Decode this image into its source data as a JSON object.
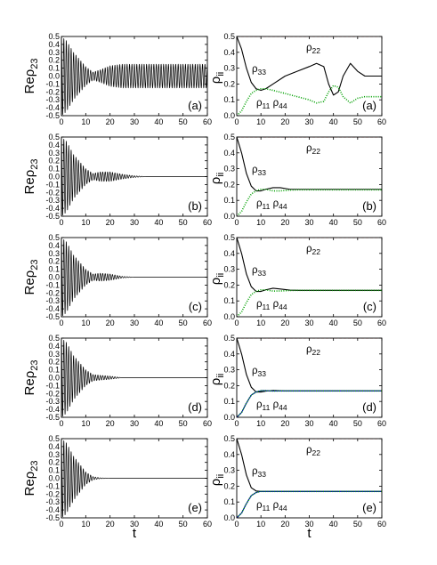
{
  "figure": {
    "x_axis_label": "t",
    "left_ylabel": {
      "main": "Re",
      "greek": "ρ",
      "sub": "23"
    },
    "right_ylabel": {
      "greek": "ρ",
      "sub": "ii"
    }
  },
  "chart_data": [
    {
      "type": "line",
      "column": "left",
      "panel_label": "(a)",
      "xlim": [
        0,
        60
      ],
      "ylim": [
        -0.5,
        0.5
      ],
      "xticks": [
        0,
        10,
        20,
        30,
        40,
        50,
        60
      ],
      "yticks": [
        -0.5,
        -0.4,
        -0.3,
        -0.2,
        -0.1,
        0.0,
        0.1,
        0.2,
        0.3,
        0.4,
        0.5
      ],
      "series": [
        {
          "color": "#000000",
          "envelope_t": [
            0,
            2,
            5,
            10,
            13,
            16,
            20,
            25,
            60
          ],
          "envelope_amp": [
            0.5,
            0.45,
            0.3,
            0.12,
            0.05,
            0.08,
            0.13,
            0.15,
            0.15
          ],
          "period": 1.0
        }
      ]
    },
    {
      "type": "line",
      "column": "left",
      "panel_label": "(b)",
      "xlim": [
        0,
        60
      ],
      "ylim": [
        -0.5,
        0.5
      ],
      "xticks": [
        0,
        10,
        20,
        30,
        40,
        50,
        60
      ],
      "yticks": [
        -0.5,
        -0.4,
        -0.3,
        -0.2,
        -0.1,
        0.0,
        0.1,
        0.2,
        0.3,
        0.4,
        0.5
      ],
      "series": [
        {
          "color": "#000000",
          "envelope_t": [
            0,
            2,
            5,
            10,
            13,
            16,
            20,
            25,
            30,
            35,
            60
          ],
          "envelope_amp": [
            0.5,
            0.45,
            0.28,
            0.1,
            0.04,
            0.06,
            0.06,
            0.03,
            0.01,
            0.0,
            0.0
          ],
          "period": 1.0
        }
      ]
    },
    {
      "type": "line",
      "column": "left",
      "panel_label": "(c)",
      "xlim": [
        0,
        60
      ],
      "ylim": [
        -0.5,
        0.5
      ],
      "xticks": [
        0,
        10,
        20,
        30,
        40,
        50,
        60
      ],
      "yticks": [
        -0.5,
        -0.4,
        -0.3,
        -0.2,
        -0.1,
        0.0,
        0.1,
        0.2,
        0.3,
        0.4,
        0.5
      ],
      "series": [
        {
          "color": "#000000",
          "envelope_t": [
            0,
            2,
            5,
            10,
            13,
            16,
            20,
            25,
            30,
            60
          ],
          "envelope_amp": [
            0.5,
            0.45,
            0.28,
            0.1,
            0.04,
            0.05,
            0.04,
            0.01,
            0.0,
            0.0
          ],
          "period": 1.0
        }
      ]
    },
    {
      "type": "line",
      "column": "left",
      "panel_label": "(d)",
      "xlim": [
        0,
        60
      ],
      "ylim": [
        -0.5,
        0.5
      ],
      "xticks": [
        0,
        10,
        20,
        30,
        40,
        50,
        60
      ],
      "yticks": [
        -0.5,
        -0.4,
        -0.3,
        -0.2,
        -0.1,
        0.0,
        0.1,
        0.2,
        0.3,
        0.4,
        0.5
      ],
      "series": [
        {
          "color": "#000000",
          "envelope_t": [
            0,
            2,
            5,
            10,
            13,
            16,
            20,
            25,
            60
          ],
          "envelope_amp": [
            0.5,
            0.45,
            0.28,
            0.1,
            0.04,
            0.03,
            0.02,
            0.0,
            0.0
          ],
          "period": 1.0
        }
      ]
    },
    {
      "type": "line",
      "column": "left",
      "panel_label": "(e)",
      "xlim": [
        0,
        60
      ],
      "ylim": [
        -0.5,
        0.5
      ],
      "xticks": [
        0,
        10,
        20,
        30,
        40,
        50,
        60
      ],
      "yticks": [
        -0.5,
        -0.4,
        -0.3,
        -0.2,
        -0.1,
        0.0,
        0.1,
        0.2,
        0.3,
        0.4,
        0.5
      ],
      "series": [
        {
          "color": "#000000",
          "envelope_t": [
            0,
            2,
            5,
            10,
            13,
            16,
            20,
            60
          ],
          "envelope_amp": [
            0.5,
            0.45,
            0.28,
            0.08,
            0.02,
            0.005,
            0.0,
            0.0
          ],
          "period": 1.0
        }
      ]
    },
    {
      "type": "line",
      "column": "right",
      "panel_label": "(a)",
      "xlim": [
        0,
        60
      ],
      "ylim": [
        0.0,
        0.5
      ],
      "xticks": [
        0,
        10,
        20,
        30,
        40,
        50,
        60
      ],
      "yticks": [
        0.0,
        0.1,
        0.2,
        0.3,
        0.4,
        0.5
      ],
      "annotations": [
        "ρ22",
        "ρ33",
        "ρ11 ρ44"
      ],
      "series": [
        {
          "color": "#ff0000",
          "style": "dash",
          "x": [
            0,
            60
          ],
          "y": [
            0.5,
            0.5
          ]
        },
        {
          "color": "#000000",
          "style": "solid",
          "x": [
            0,
            2,
            4,
            6,
            8,
            10,
            12,
            15,
            20,
            25,
            30,
            33,
            36,
            38,
            40,
            42,
            44,
            47,
            50,
            53,
            56,
            60
          ],
          "y": [
            0.5,
            0.42,
            0.3,
            0.21,
            0.17,
            0.16,
            0.17,
            0.2,
            0.25,
            0.28,
            0.31,
            0.33,
            0.31,
            0.2,
            0.13,
            0.15,
            0.25,
            0.33,
            0.28,
            0.25,
            0.25,
            0.25
          ]
        },
        {
          "color": "#00a000",
          "style": "dot",
          "x": [
            0,
            2,
            4,
            6,
            8,
            10,
            12,
            15,
            20,
            25,
            30,
            33,
            36,
            38,
            40,
            42,
            44,
            47,
            50,
            53,
            56,
            60
          ],
          "y": [
            0.0,
            0.03,
            0.09,
            0.14,
            0.16,
            0.17,
            0.17,
            0.16,
            0.14,
            0.12,
            0.1,
            0.08,
            0.09,
            0.15,
            0.19,
            0.18,
            0.12,
            0.08,
            0.11,
            0.12,
            0.12,
            0.12
          ]
        }
      ]
    },
    {
      "type": "line",
      "column": "right",
      "panel_label": "(b)",
      "xlim": [
        0,
        60
      ],
      "ylim": [
        0.0,
        0.5
      ],
      "xticks": [
        0,
        10,
        20,
        30,
        40,
        50,
        60
      ],
      "yticks": [
        0.0,
        0.1,
        0.2,
        0.3,
        0.4,
        0.5
      ],
      "annotations": [
        "ρ22",
        "ρ33",
        "ρ11 ρ44"
      ],
      "series": [
        {
          "color": "#ff0000",
          "style": "dash",
          "x": [
            0,
            60
          ],
          "y": [
            0.5,
            0.5
          ]
        },
        {
          "color": "#000000",
          "style": "solid",
          "x": [
            0,
            2,
            4,
            6,
            8,
            10,
            12,
            15,
            18,
            22,
            26,
            30,
            60
          ],
          "y": [
            0.5,
            0.4,
            0.27,
            0.19,
            0.16,
            0.16,
            0.17,
            0.18,
            0.18,
            0.17,
            0.17,
            0.17,
            0.17
          ]
        },
        {
          "color": "#00a000",
          "style": "dot",
          "x": [
            0,
            2,
            4,
            6,
            8,
            10,
            12,
            15,
            18,
            22,
            26,
            30,
            60
          ],
          "y": [
            0.0,
            0.03,
            0.09,
            0.14,
            0.16,
            0.17,
            0.17,
            0.16,
            0.16,
            0.165,
            0.167,
            0.167,
            0.167
          ]
        }
      ]
    },
    {
      "type": "line",
      "column": "right",
      "panel_label": "(c)",
      "xlim": [
        0,
        60
      ],
      "ylim": [
        0.0,
        0.5
      ],
      "xticks": [
        0,
        10,
        20,
        30,
        40,
        50,
        60
      ],
      "yticks": [
        0.0,
        0.1,
        0.2,
        0.3,
        0.4,
        0.5
      ],
      "annotations": [
        "ρ22",
        "ρ33",
        "ρ11 ρ44"
      ],
      "series": [
        {
          "color": "#ff0000",
          "style": "dash",
          "x": [
            0,
            60
          ],
          "y": [
            0.5,
            0.5
          ]
        },
        {
          "color": "#000000",
          "style": "solid",
          "x": [
            0,
            2,
            4,
            6,
            8,
            10,
            12,
            15,
            18,
            22,
            26,
            60
          ],
          "y": [
            0.5,
            0.4,
            0.27,
            0.19,
            0.16,
            0.16,
            0.17,
            0.18,
            0.175,
            0.168,
            0.167,
            0.167
          ]
        },
        {
          "color": "#00a000",
          "style": "dot",
          "x": [
            0,
            2,
            4,
            6,
            8,
            10,
            12,
            15,
            18,
            22,
            26,
            60
          ],
          "y": [
            0.0,
            0.03,
            0.09,
            0.14,
            0.16,
            0.17,
            0.17,
            0.162,
            0.163,
            0.166,
            0.167,
            0.167
          ]
        }
      ]
    },
    {
      "type": "line",
      "column": "right",
      "panel_label": "(d)",
      "xlim": [
        0,
        60
      ],
      "ylim": [
        0.0,
        0.5
      ],
      "xticks": [
        0,
        10,
        20,
        30,
        40,
        50,
        60
      ],
      "yticks": [
        0.0,
        0.1,
        0.2,
        0.3,
        0.4,
        0.5
      ],
      "annotations": [
        "ρ22",
        "ρ33",
        "ρ11 ρ44"
      ],
      "series": [
        {
          "color": "#ff0000",
          "style": "dash",
          "x": [
            0,
            60
          ],
          "y": [
            0.5,
            0.5
          ]
        },
        {
          "color": "#000000",
          "style": "solid",
          "x": [
            0,
            2,
            4,
            6,
            8,
            10,
            12,
            15,
            20,
            60
          ],
          "y": [
            0.5,
            0.4,
            0.27,
            0.19,
            0.16,
            0.16,
            0.165,
            0.17,
            0.167,
            0.167
          ]
        },
        {
          "color": "#0000c0",
          "style": "solid",
          "x": [
            0,
            2,
            4,
            6,
            8,
            10,
            12,
            15,
            20,
            60
          ],
          "y": [
            0.0,
            0.03,
            0.09,
            0.14,
            0.16,
            0.168,
            0.168,
            0.166,
            0.167,
            0.167
          ]
        },
        {
          "color": "#00a000",
          "style": "dot",
          "x": [
            0,
            2,
            4,
            6,
            8,
            10,
            12,
            15,
            20,
            60
          ],
          "y": [
            0.0,
            0.03,
            0.09,
            0.14,
            0.16,
            0.168,
            0.168,
            0.166,
            0.167,
            0.167
          ]
        }
      ]
    },
    {
      "type": "line",
      "column": "right",
      "panel_label": "(e)",
      "xlim": [
        0,
        60
      ],
      "ylim": [
        0.0,
        0.5
      ],
      "xticks": [
        0,
        10,
        20,
        30,
        40,
        50,
        60
      ],
      "yticks": [
        0.0,
        0.1,
        0.2,
        0.3,
        0.4,
        0.5
      ],
      "annotations": [
        "ρ22",
        "ρ33",
        "ρ11 ρ44"
      ],
      "series": [
        {
          "color": "#ff0000",
          "style": "dash",
          "x": [
            0,
            60
          ],
          "y": [
            0.5,
            0.5
          ]
        },
        {
          "color": "#000000",
          "style": "solid",
          "x": [
            0,
            2,
            4,
            6,
            8,
            10,
            12,
            15,
            60
          ],
          "y": [
            0.5,
            0.4,
            0.27,
            0.19,
            0.17,
            0.167,
            0.167,
            0.167,
            0.167
          ]
        },
        {
          "color": "#0000c0",
          "style": "solid",
          "x": [
            0,
            2,
            4,
            6,
            8,
            10,
            12,
            15,
            60
          ],
          "y": [
            0.0,
            0.03,
            0.09,
            0.14,
            0.16,
            0.167,
            0.167,
            0.167,
            0.167
          ]
        },
        {
          "color": "#00a000",
          "style": "dot",
          "x": [
            0,
            2,
            4,
            6,
            8,
            10,
            12,
            15,
            60
          ],
          "y": [
            0.0,
            0.03,
            0.09,
            0.14,
            0.16,
            0.167,
            0.167,
            0.167,
            0.167
          ]
        }
      ]
    }
  ]
}
